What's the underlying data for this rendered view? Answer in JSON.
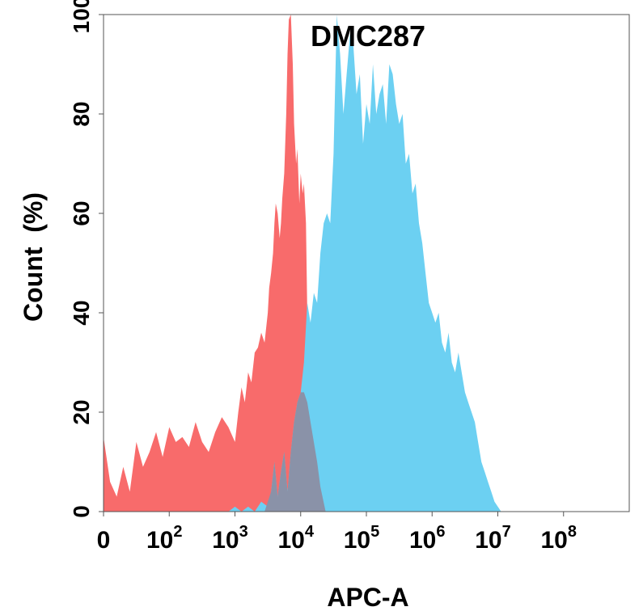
{
  "chart_data": {
    "type": "area",
    "title": "DMC287",
    "xlabel": "APC-A",
    "ylabel": "Count  (%)",
    "x_scale": "log",
    "xlim_decades": [
      0,
      8
    ],
    "ylim": [
      0,
      100
    ],
    "grid": false,
    "legend": "none",
    "x_ticks": [
      {
        "base": "0",
        "exp": ""
      },
      {
        "base": "10",
        "exp": "2"
      },
      {
        "base": "10",
        "exp": "3"
      },
      {
        "base": "10",
        "exp": "4"
      },
      {
        "base": "10",
        "exp": "5"
      },
      {
        "base": "10",
        "exp": "6"
      },
      {
        "base": "10",
        "exp": "7"
      },
      {
        "base": "10",
        "exp": "8"
      }
    ],
    "y_ticks": [
      "0",
      "20",
      "40",
      "60",
      "80",
      "100"
    ],
    "series": [
      {
        "color": "#f86b6b",
        "x_log": [
          0.0,
          0.1,
          0.2,
          0.3,
          0.4,
          0.5,
          0.6,
          0.7,
          0.8,
          0.9,
          1.0,
          1.1,
          1.2,
          1.3,
          1.4,
          1.5,
          1.6,
          1.7,
          1.8,
          1.9,
          2.0,
          2.05,
          2.1,
          2.15,
          2.2,
          2.25,
          2.3,
          2.35,
          2.4,
          2.45,
          2.5,
          2.52,
          2.55,
          2.58,
          2.6,
          2.62,
          2.65,
          2.68,
          2.7,
          2.72,
          2.75,
          2.78,
          2.8,
          2.82,
          2.85,
          2.88,
          2.9,
          2.93,
          2.95,
          2.98,
          3.0,
          3.03,
          3.05,
          3.08,
          3.1,
          3.15,
          3.2,
          3.25,
          3.3,
          3.38
        ],
        "y": [
          15,
          6,
          3,
          9,
          4,
          14,
          9,
          12,
          16,
          11,
          17,
          14,
          15,
          13,
          18,
          14,
          12,
          16,
          19,
          17,
          14,
          20,
          25,
          22,
          28,
          26,
          32,
          33,
          36,
          34,
          40,
          45,
          48,
          52,
          58,
          62,
          60,
          55,
          58,
          63,
          68,
          80,
          92,
          99,
          100,
          90,
          78,
          70,
          73,
          62,
          68,
          64,
          66,
          58,
          40,
          28,
          18,
          10,
          5,
          0
        ]
      },
      {
        "color": "#6cd0f2",
        "x_log": [
          1.9,
          2.0,
          2.1,
          2.2,
          2.3,
          2.4,
          2.5,
          2.55,
          2.6,
          2.65,
          2.7,
          2.75,
          2.8,
          2.85,
          2.9,
          2.95,
          3.0,
          3.05,
          3.1,
          3.15,
          3.2,
          3.25,
          3.3,
          3.35,
          3.4,
          3.45,
          3.5,
          3.55,
          3.6,
          3.65,
          3.7,
          3.75,
          3.8,
          3.85,
          3.9,
          3.95,
          4.0,
          4.05,
          4.1,
          4.15,
          4.2,
          4.25,
          4.3,
          4.35,
          4.4,
          4.45,
          4.5,
          4.55,
          4.6,
          4.65,
          4.7,
          4.75,
          4.8,
          4.85,
          4.9,
          4.95,
          5.0,
          5.05,
          5.1,
          5.15,
          5.2,
          5.25,
          5.3,
          5.35,
          5.4,
          5.45,
          5.5,
          5.55,
          5.6,
          5.65,
          5.7,
          5.75,
          5.8,
          5.85,
          5.9,
          5.95,
          6.0,
          6.05
        ],
        "y": [
          0,
          1,
          0,
          1,
          0,
          2,
          1,
          4,
          10,
          3,
          8,
          12,
          4,
          12,
          18,
          22,
          24,
          30,
          42,
          38,
          44,
          42,
          52,
          58,
          60,
          58,
          72,
          100,
          92,
          80,
          88,
          96,
          94,
          84,
          88,
          74,
          82,
          78,
          90,
          80,
          84,
          86,
          78,
          90,
          88,
          82,
          78,
          80,
          70,
          72,
          64,
          66,
          58,
          54,
          48,
          42,
          40,
          38,
          40,
          34,
          32,
          36,
          30,
          28,
          32,
          28,
          24,
          22,
          20,
          18,
          14,
          10,
          8,
          6,
          4,
          2,
          1,
          0
        ]
      },
      {
        "color": "#8a92a8",
        "x_log": [
          2.45,
          2.5,
          2.55,
          2.6,
          2.65,
          2.7,
          2.75,
          2.8,
          2.85,
          2.9,
          2.95,
          3.0,
          3.05,
          3.1,
          3.15,
          3.2,
          3.25,
          3.3,
          3.38
        ],
        "y": [
          0,
          2,
          4,
          10,
          3,
          8,
          12,
          4,
          12,
          18,
          22,
          24,
          24,
          22,
          18,
          14,
          10,
          5,
          0
        ]
      }
    ]
  }
}
